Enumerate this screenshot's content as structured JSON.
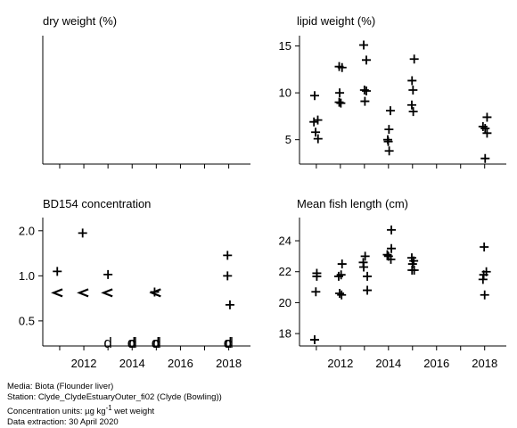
{
  "footer": {
    "media": "Media: Biota (Flounder liver)",
    "station": "Station: Clyde_ClydeEstuaryOuter_fi02 (Clyde (Bowling))",
    "units_prefix": "Concentration units: ",
    "units_mu": "µg kg",
    "units_sup": "-1",
    "units_suffix": " wet weight",
    "extraction": "Data extraction: 30 April 2020"
  },
  "chart_data": [
    {
      "id": "dry",
      "type": "scatter",
      "title": "dry weight (%)",
      "xlim": [
        2010.3,
        2018.9
      ],
      "x_ticks": [
        2011,
        2012,
        2013,
        2014,
        2015,
        2016,
        2017,
        2018
      ],
      "x_tick_labels": [],
      "y_scale": "linear",
      "ylim": [
        0,
        1
      ],
      "y_ticks": [],
      "y_tick_labels": [],
      "points": []
    },
    {
      "id": "lipid",
      "type": "scatter",
      "title": "lipid weight (%)",
      "xlim": [
        2010.3,
        2018.9
      ],
      "x_ticks": [
        2011,
        2012,
        2013,
        2014,
        2015,
        2016,
        2017,
        2018
      ],
      "x_tick_labels": [],
      "y_scale": "linear",
      "ylim": [
        2.4,
        16.1
      ],
      "y_ticks": [
        5,
        10,
        15
      ],
      "y_tick_labels": [
        "5",
        "10",
        "15"
      ],
      "points": [
        {
          "x": 2010.93,
          "y": 9.7,
          "m": "+"
        },
        {
          "x": 2010.9,
          "y": 6.9,
          "m": "+"
        },
        {
          "x": 2011.06,
          "y": 7.1,
          "m": "+"
        },
        {
          "x": 2010.97,
          "y": 5.8,
          "m": "+"
        },
        {
          "x": 2011.07,
          "y": 5.1,
          "m": "+"
        },
        {
          "x": 2011.95,
          "y": 12.8,
          "m": "+"
        },
        {
          "x": 2012.07,
          "y": 12.7,
          "m": "+"
        },
        {
          "x": 2011.97,
          "y": 10.0,
          "m": "+"
        },
        {
          "x": 2011.95,
          "y": 9.0,
          "m": "+"
        },
        {
          "x": 2012.02,
          "y": 8.9,
          "m": "+"
        },
        {
          "x": 2012.97,
          "y": 15.1,
          "m": "+"
        },
        {
          "x": 2013.08,
          "y": 13.5,
          "m": "+"
        },
        {
          "x": 2013.0,
          "y": 10.3,
          "m": "+"
        },
        {
          "x": 2013.08,
          "y": 10.2,
          "m": "+"
        },
        {
          "x": 2013.02,
          "y": 9.1,
          "m": "+"
        },
        {
          "x": 2014.08,
          "y": 8.1,
          "m": "+"
        },
        {
          "x": 2014.02,
          "y": 6.1,
          "m": "+"
        },
        {
          "x": 2013.97,
          "y": 5.0,
          "m": "+"
        },
        {
          "x": 2013.99,
          "y": 4.8,
          "m": "+"
        },
        {
          "x": 2014.03,
          "y": 3.8,
          "m": "+"
        },
        {
          "x": 2015.07,
          "y": 13.6,
          "m": "+"
        },
        {
          "x": 2014.98,
          "y": 11.3,
          "m": "+"
        },
        {
          "x": 2015.02,
          "y": 10.3,
          "m": "+"
        },
        {
          "x": 2014.97,
          "y": 8.7,
          "m": "+"
        },
        {
          "x": 2015.03,
          "y": 8.0,
          "m": "+"
        },
        {
          "x": 2018.1,
          "y": 7.4,
          "m": "+"
        },
        {
          "x": 2017.93,
          "y": 6.4,
          "m": "+"
        },
        {
          "x": 2018.02,
          "y": 6.2,
          "m": "+"
        },
        {
          "x": 2018.1,
          "y": 5.7,
          "m": "+"
        },
        {
          "x": 2018.02,
          "y": 3.0,
          "m": "+"
        }
      ]
    },
    {
      "id": "bd154",
      "type": "scatter",
      "title": "BD154 concentration",
      "xlim": [
        2010.3,
        2018.9
      ],
      "x_ticks": [
        2011,
        2012,
        2013,
        2014,
        2015,
        2016,
        2017,
        2018
      ],
      "x_tick_labels": [
        "",
        "2012",
        "",
        "2014",
        "",
        "2016",
        "",
        "2018"
      ],
      "y_scale": "log",
      "ylim": [
        0.34,
        2.45
      ],
      "y_ticks": [
        0.5,
        1.0,
        2.0
      ],
      "y_tick_labels": [
        "0.5",
        "1.0",
        "2.0"
      ],
      "points": [
        {
          "x": 2010.9,
          "y": 1.07,
          "m": "+"
        },
        {
          "x": 2011.95,
          "y": 1.93,
          "m": "+"
        },
        {
          "x": 2013.0,
          "y": 1.02,
          "m": "+"
        },
        {
          "x": 2017.95,
          "y": 1.37,
          "m": "+"
        },
        {
          "x": 2017.95,
          "y": 1.0,
          "m": "+"
        },
        {
          "x": 2018.05,
          "y": 0.64,
          "m": "+"
        },
        {
          "x": 2014.93,
          "y": 0.78,
          "m": "+"
        },
        {
          "x": 2010.93,
          "y": 0.77,
          "m": "<"
        },
        {
          "x": 2012.0,
          "y": 0.77,
          "m": "<"
        },
        {
          "x": 2013.0,
          "y": 0.77,
          "m": "<"
        },
        {
          "x": 2015.0,
          "y": 0.77,
          "m": "<"
        },
        {
          "x": 2013.0,
          "y": 0.36,
          "m": "d"
        },
        {
          "x": 2013.97,
          "y": 0.36,
          "m": "d"
        },
        {
          "x": 2014.03,
          "y": 0.36,
          "m": "d"
        },
        {
          "x": 2014.97,
          "y": 0.36,
          "m": "d"
        },
        {
          "x": 2015.03,
          "y": 0.36,
          "m": "d"
        },
        {
          "x": 2017.96,
          "y": 0.36,
          "m": "d"
        },
        {
          "x": 2018.02,
          "y": 0.36,
          "m": "d"
        }
      ]
    },
    {
      "id": "length",
      "type": "scatter",
      "title": "Mean fish length (cm)",
      "xlim": [
        2010.3,
        2018.9
      ],
      "x_ticks": [
        2011,
        2012,
        2013,
        2014,
        2015,
        2016,
        2017,
        2018
      ],
      "x_tick_labels": [
        "",
        "2012",
        "",
        "2014",
        "",
        "2016",
        "",
        "2018"
      ],
      "y_scale": "linear",
      "ylim": [
        17.2,
        25.5
      ],
      "y_ticks": [
        18,
        20,
        22,
        24
      ],
      "y_tick_labels": [
        "18",
        "20",
        "22",
        "24"
      ],
      "points": [
        {
          "x": 2010.93,
          "y": 17.6,
          "m": "+"
        },
        {
          "x": 2011.02,
          "y": 21.9,
          "m": "+"
        },
        {
          "x": 2011.02,
          "y": 21.7,
          "m": "+"
        },
        {
          "x": 2010.98,
          "y": 20.7,
          "m": "+"
        },
        {
          "x": 2012.07,
          "y": 22.5,
          "m": "+"
        },
        {
          "x": 2011.93,
          "y": 21.7,
          "m": "+"
        },
        {
          "x": 2012.03,
          "y": 21.8,
          "m": "+"
        },
        {
          "x": 2011.97,
          "y": 20.6,
          "m": "+"
        },
        {
          "x": 2012.05,
          "y": 20.5,
          "m": "+"
        },
        {
          "x": 2013.03,
          "y": 23.0,
          "m": "+"
        },
        {
          "x": 2012.95,
          "y": 22.6,
          "m": "+"
        },
        {
          "x": 2012.97,
          "y": 22.3,
          "m": "+"
        },
        {
          "x": 2013.12,
          "y": 21.7,
          "m": "+"
        },
        {
          "x": 2013.12,
          "y": 20.8,
          "m": "+"
        },
        {
          "x": 2014.12,
          "y": 24.7,
          "m": "+"
        },
        {
          "x": 2014.12,
          "y": 23.5,
          "m": "+"
        },
        {
          "x": 2013.95,
          "y": 23.1,
          "m": "+"
        },
        {
          "x": 2014.0,
          "y": 23.0,
          "m": "+"
        },
        {
          "x": 2014.1,
          "y": 22.8,
          "m": "+"
        },
        {
          "x": 2014.97,
          "y": 22.9,
          "m": "+"
        },
        {
          "x": 2015.05,
          "y": 22.7,
          "m": "+"
        },
        {
          "x": 2015.0,
          "y": 22.5,
          "m": "+"
        },
        {
          "x": 2014.98,
          "y": 22.1,
          "m": "+"
        },
        {
          "x": 2015.07,
          "y": 22.1,
          "m": "+"
        },
        {
          "x": 2017.98,
          "y": 23.6,
          "m": "+"
        },
        {
          "x": 2018.07,
          "y": 22.0,
          "m": "+"
        },
        {
          "x": 2017.96,
          "y": 21.8,
          "m": "+"
        },
        {
          "x": 2017.93,
          "y": 21.5,
          "m": "+"
        },
        {
          "x": 2018.0,
          "y": 20.5,
          "m": "+"
        }
      ]
    }
  ]
}
